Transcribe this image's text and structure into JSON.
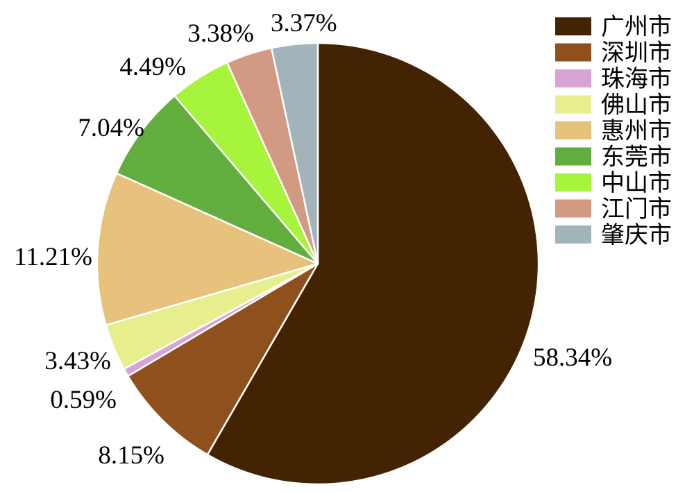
{
  "chart_data": {
    "type": "pie",
    "title": "",
    "start_angle_deg": 0,
    "direction": "clockwise",
    "legend_position": "right",
    "slices": [
      {
        "name": "广州市",
        "value": 58.34,
        "label": "58.34%",
        "color": "#442303"
      },
      {
        "name": "深圳市",
        "value": 8.15,
        "label": "8.15%",
        "color": "#8e511d"
      },
      {
        "name": "珠海市",
        "value": 0.59,
        "label": "0.59%",
        "color": "#d9a3d4"
      },
      {
        "name": "佛山市",
        "value": 3.43,
        "label": "3.43%",
        "color": "#e6ee8e"
      },
      {
        "name": "惠州市",
        "value": 11.21,
        "label": "11.21%",
        "color": "#e6c27c"
      },
      {
        "name": "东莞市",
        "value": 7.04,
        "label": "7.04%",
        "color": "#61ae3f"
      },
      {
        "name": "中山市",
        "value": 4.49,
        "label": "4.49%",
        "color": "#a6f43b"
      },
      {
        "name": "江门市",
        "value": 3.38,
        "label": "3.38%",
        "color": "#d29a82"
      },
      {
        "name": "肇庆市",
        "value": 3.37,
        "label": "3.37%",
        "color": "#a2b3ba"
      }
    ]
  }
}
